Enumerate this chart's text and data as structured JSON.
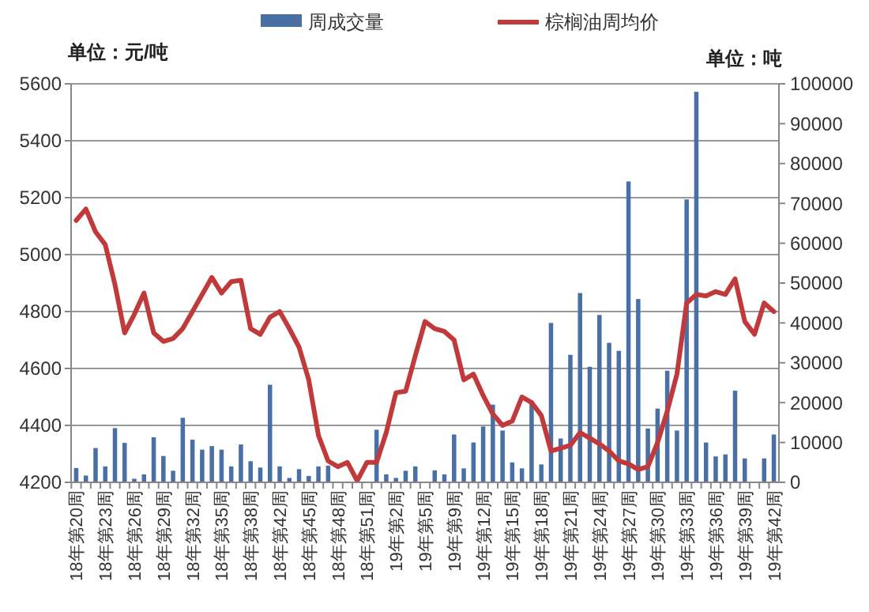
{
  "chart_data": {
    "type": "bar",
    "ylabel": "单位：元/吨",
    "y2label": "单位：吨",
    "categories": [
      "18年第20周",
      null,
      null,
      "18年第23周",
      null,
      null,
      "18年第26周",
      null,
      null,
      "18年第29周",
      null,
      null,
      "18年第32周",
      null,
      null,
      "18年第35周",
      null,
      null,
      "18年第38周",
      null,
      null,
      "18年第42周",
      null,
      null,
      "18年第45周",
      null,
      null,
      "18年第48周",
      null,
      null,
      "18年第51周",
      null,
      null,
      "19年第2周",
      null,
      null,
      "19年第5周",
      null,
      null,
      "19年第9周",
      null,
      null,
      "19年第12周",
      null,
      null,
      "19年第15周",
      null,
      null,
      "19年第18周",
      null,
      null,
      "19年第21周",
      null,
      null,
      "19年第24周",
      null,
      null,
      "19年第27周",
      null,
      null,
      "19年第30周",
      null,
      null,
      "19年第33周",
      null,
      null,
      "19年第36周",
      null,
      null,
      "19年第39周",
      null,
      null,
      "19年第42周"
    ],
    "series": [
      {
        "name": "周成交量",
        "axis": "y2",
        "color": "#4a6fa5",
        "values": [
          3600,
          1700,
          8600,
          4000,
          13600,
          9900,
          900,
          2000,
          11300,
          6600,
          2900,
          16200,
          10700,
          8200,
          9100,
          8200,
          4000,
          9500,
          5300,
          3700,
          24500,
          4000,
          1100,
          3300,
          1600,
          4000,
          4200,
          null,
          null,
          null,
          null,
          13200,
          2000,
          1100,
          2900,
          4000,
          null,
          3000,
          2000,
          12000,
          3500,
          10000,
          14000,
          19500,
          13000,
          5000,
          3500,
          20500,
          4500,
          40000,
          11000,
          32000,
          47500,
          29000,
          42000,
          35000,
          33000,
          75500,
          46000,
          13500,
          18500,
          28000,
          13000,
          71000,
          98000,
          10000,
          6500,
          7000,
          23000,
          6000,
          null,
          6000,
          12000
        ]
      },
      {
        "name": "棕榈油周均价",
        "type": "line",
        "axis": "y",
        "color": "#c0393b",
        "values": [
          5120,
          5160,
          5080,
          5035,
          4895,
          4725,
          4790,
          4865,
          4725,
          4695,
          4705,
          4740,
          4800,
          4860,
          4920,
          4865,
          4905,
          4910,
          4740,
          4720,
          4780,
          4800,
          4740,
          4675,
          4560,
          4365,
          4275,
          4255,
          4270,
          4205,
          4270,
          4270,
          4375,
          4515,
          4520,
          4645,
          4765,
          4740,
          4730,
          4700,
          4560,
          4580,
          4505,
          4440,
          4400,
          4415,
          4500,
          4480,
          4435,
          4310,
          4320,
          4330,
          4375,
          4355,
          4335,
          4310,
          4275,
          4265,
          4245,
          4255,
          4340,
          4450,
          4580,
          4830,
          4860,
          4855,
          4870,
          4860,
          4915,
          4765,
          4720,
          4830,
          4800
        ]
      }
    ],
    "ylim": [
      4200,
      5600
    ],
    "yticks": [
      4200,
      4400,
      4600,
      4800,
      5000,
      5200,
      5400,
      5600
    ],
    "y2lim": [
      0,
      100000
    ],
    "y2ticks": [
      0,
      10000,
      20000,
      30000,
      40000,
      50000,
      60000,
      70000,
      80000,
      90000,
      100000
    ],
    "grid": "y",
    "legend": "top",
    "marker": "none",
    "line_style": "solid"
  }
}
